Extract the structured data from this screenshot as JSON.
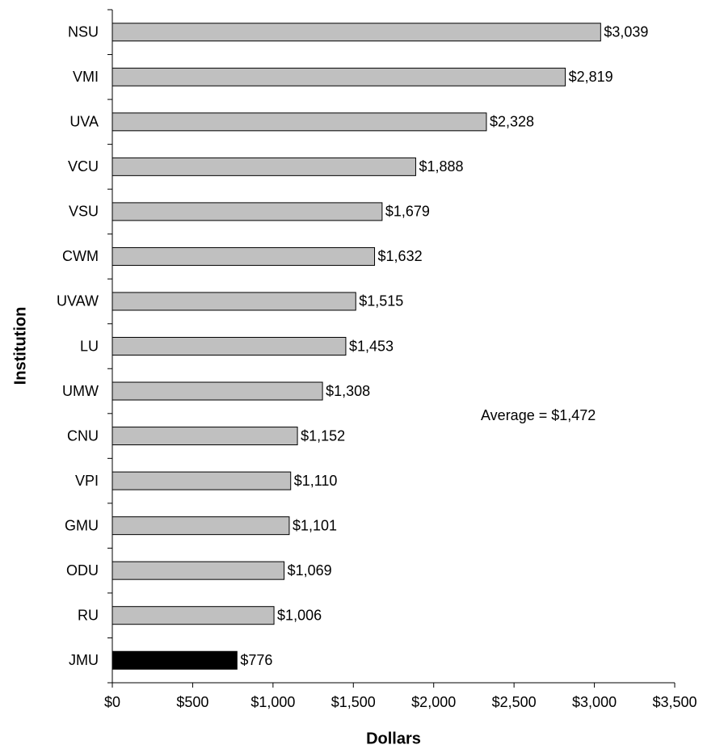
{
  "chart_data": {
    "type": "bar",
    "orientation": "horizontal",
    "x_label": "Dollars",
    "y_label": "Institution",
    "annotation": "Average = $1,472",
    "categories": [
      "NSU",
      "VMI",
      "UVA",
      "VCU",
      "VSU",
      "CWM",
      "UVAW",
      "LU",
      "UMW",
      "CNU",
      "VPI",
      "GMU",
      "ODU",
      "RU",
      "JMU"
    ],
    "values": [
      3039,
      2819,
      2328,
      1888,
      1679,
      1632,
      1515,
      1453,
      1308,
      1152,
      1110,
      1101,
      1069,
      1006,
      776
    ],
    "value_labels": [
      "$3,039",
      "$2,819",
      "$2,328",
      "$1,888",
      "$1,679",
      "$1,632",
      "$1,515",
      "$1,453",
      "$1,308",
      "$1,152",
      "$1,110",
      "$1,101",
      "$1,069",
      "$1,006",
      "$776"
    ],
    "colors": [
      "#c0c0c0",
      "#c0c0c0",
      "#c0c0c0",
      "#c0c0c0",
      "#c0c0c0",
      "#c0c0c0",
      "#c0c0c0",
      "#c0c0c0",
      "#c0c0c0",
      "#c0c0c0",
      "#c0c0c0",
      "#c0c0c0",
      "#c0c0c0",
      "#c0c0c0",
      "#000000"
    ],
    "xlim": [
      0,
      3500
    ],
    "xticks": [
      {
        "value": 0,
        "label": "$0"
      },
      {
        "value": 500,
        "label": "$500"
      },
      {
        "value": 1000,
        "label": "$1,000"
      },
      {
        "value": 1500,
        "label": "$1,500"
      },
      {
        "value": 2000,
        "label": "$2,000"
      },
      {
        "value": 2500,
        "label": "$2,500"
      },
      {
        "value": 3000,
        "label": "$3,000"
      },
      {
        "value": 3500,
        "label": "$3,500"
      }
    ],
    "grid": false
  }
}
